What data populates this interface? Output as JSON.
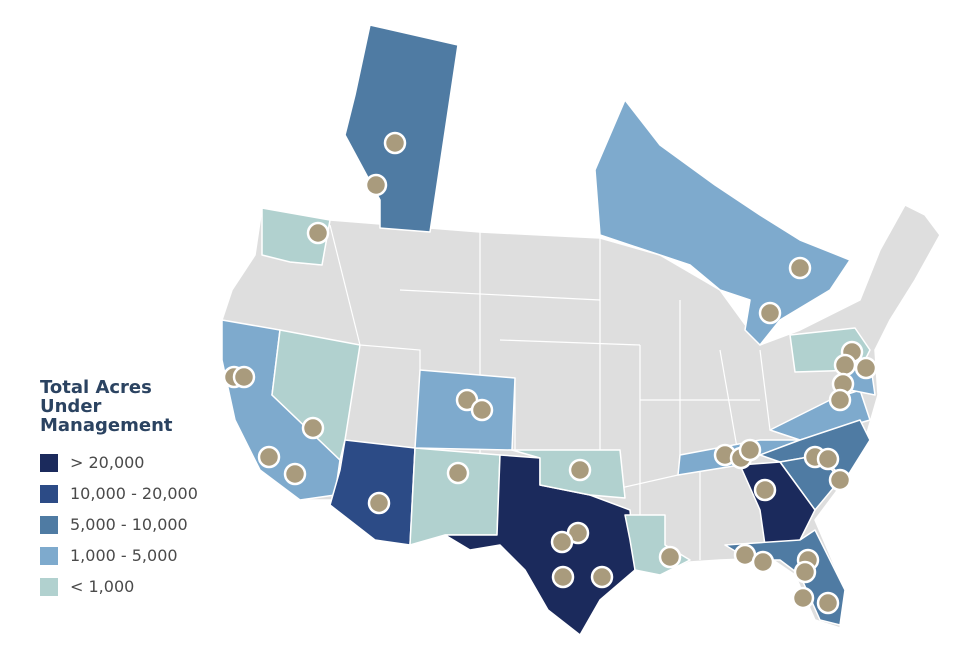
{
  "legend": {
    "title": "Total Acres Under Management",
    "items": [
      {
        "label": "> 20,000",
        "color": "#1b2a5c"
      },
      {
        "label": "10,000 - 20,000",
        "color": "#2c4b86"
      },
      {
        "label": "5,000 - 10,000",
        "color": "#4f7ba3"
      },
      {
        "label": "1,000 - 5,000",
        "color": "#7eaacd"
      },
      {
        "label": "< 1,000",
        "color": "#b1d1cf"
      }
    ]
  }
}
